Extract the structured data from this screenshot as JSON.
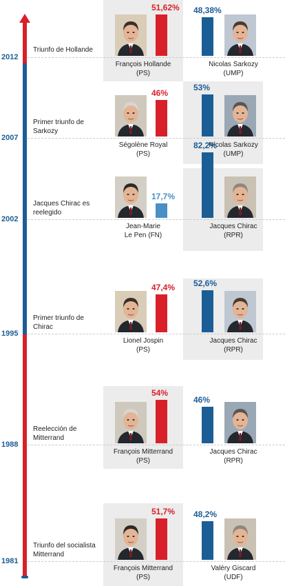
{
  "colors": {
    "left_party_red": "#d8202a",
    "right_party_blue": "#1b5d95",
    "far_right_light_blue": "#4a8fc5",
    "panel_gray": "#ececec",
    "axis_red": "#d8202a",
    "axis_blue": "#1b5d95"
  },
  "chart_data": {
    "type": "bar",
    "axis": "timeline of French presidential elections (second round)",
    "elections": [
      {
        "year": "2012",
        "event": "Triunfo de Hollande",
        "winner_side": "left",
        "left": {
          "name": "François Hollande",
          "party": "(PS)",
          "value": 51.62,
          "label": "51,62%",
          "color": "#d8202a",
          "photo_icon": "portrait-hollande-icon"
        },
        "right": {
          "name": "Nicolas Sarkozy",
          "party": "(UMP)",
          "value": 48.38,
          "label": "48,38%",
          "color": "#1b5d95",
          "photo_icon": "portrait-sarkozy-icon"
        }
      },
      {
        "year": "2007",
        "event": "Primer triunfo de Sarkozy",
        "winner_side": "right",
        "left": {
          "name": "Ségolène Royal",
          "party": "(PS)",
          "value": 46,
          "label": "46%",
          "color": "#d8202a",
          "photo_icon": "portrait-royal-icon"
        },
        "right": {
          "name": "Nicolas Sarkozy",
          "party": "(UMP)",
          "value": 53,
          "label": "53%",
          "color": "#1b5d95",
          "photo_icon": "portrait-sarkozy-icon"
        }
      },
      {
        "year": "2002",
        "event": "Jacques Chirac es reelegido",
        "winner_side": "right",
        "left": {
          "name": "Jean-Marie Le Pen",
          "party": "(FN)",
          "value": 17.7,
          "label": "17,7%",
          "color": "#4a8fc5",
          "photo_icon": "portrait-lepen-icon"
        },
        "right": {
          "name": "Jacques Chirac",
          "party": "(RPR)",
          "value": 82.2,
          "label": "82,2%",
          "color": "#1b5d95",
          "photo_icon": "portrait-chirac-icon"
        }
      },
      {
        "year": "1995",
        "event": "Primer triunfo de Chirac",
        "winner_side": "right",
        "left": {
          "name": "Lionel Jospin",
          "party": "(PS)",
          "value": 47.4,
          "label": "47,4%",
          "color": "#d8202a",
          "photo_icon": "portrait-jospin-icon"
        },
        "right": {
          "name": "Jacques Chirac",
          "party": "(RPR)",
          "value": 52.6,
          "label": "52,6%",
          "color": "#1b5d95",
          "photo_icon": "portrait-chirac-icon"
        }
      },
      {
        "year": "1988",
        "event": "Reelección de Mitterrand",
        "winner_side": "left",
        "left": {
          "name": "François Mitterrand",
          "party": "(PS)",
          "value": 54,
          "label": "54%",
          "color": "#d8202a",
          "photo_icon": "portrait-mitterrand-icon"
        },
        "right": {
          "name": "Jacques Chirac",
          "party": "(RPR)",
          "value": 46,
          "label": "46%",
          "color": "#1b5d95",
          "photo_icon": "portrait-chirac-icon"
        }
      },
      {
        "year": "1981",
        "event": "Triunfo del socialista Mitterrand",
        "winner_side": "left",
        "left": {
          "name": "François Mitterrand",
          "party": "(PS)",
          "value": 51.7,
          "label": "51,7%",
          "color": "#d8202a",
          "photo_icon": "portrait-mitterrand-icon"
        },
        "right": {
          "name": "Valéry Giscard",
          "party": "(UDF)",
          "value": 48.2,
          "label": "48,2%",
          "color": "#1b5d95",
          "photo_icon": "portrait-giscard-icon"
        }
      }
    ]
  }
}
